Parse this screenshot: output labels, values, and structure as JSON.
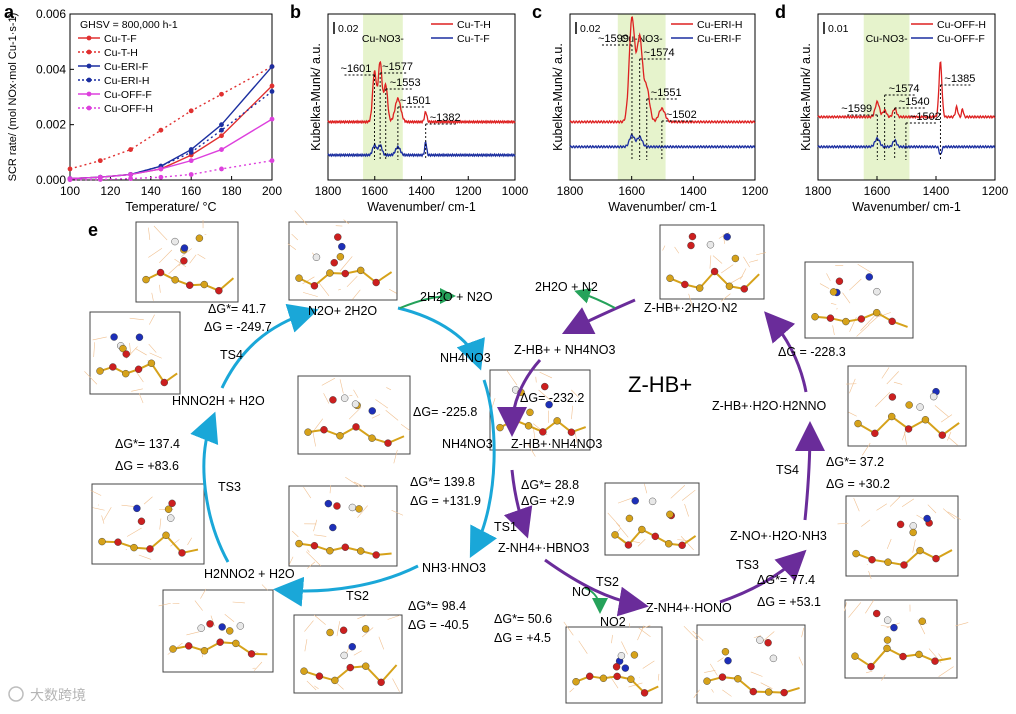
{
  "panel_letters": [
    "a",
    "b",
    "c",
    "d",
    "e"
  ],
  "chart_data": [
    {
      "panel": "a",
      "type": "line",
      "title": "",
      "annotation": "GHSV = 800,000 h-1",
      "xlabel": "Temperature/ °C",
      "ylabel": "SCR rate/ (mol NOx·mol Cu-1·s-1)",
      "xlim": [
        100,
        200
      ],
      "ylim": [
        0,
        0.006
      ],
      "xticks": [
        "100",
        "120",
        "140",
        "160",
        "180",
        "200"
      ],
      "yticks": [
        "0.000",
        "0.002",
        "0.004",
        "0.006"
      ],
      "series": [
        {
          "name": "Cu-T-F",
          "color": "#e03030",
          "style": "solid",
          "x": [
            100,
            115,
            130,
            145,
            160,
            175,
            200
          ],
          "values": [
            5e-05,
            0.0001,
            0.0002,
            0.0004,
            0.0009,
            0.0016,
            0.0034
          ]
        },
        {
          "name": "Cu-T-H",
          "color": "#e03030",
          "style": "dot",
          "x": [
            100,
            115,
            130,
            145,
            160,
            175,
            200
          ],
          "values": [
            0.0004,
            0.0007,
            0.0011,
            0.0018,
            0.0025,
            0.0031,
            0.0041
          ]
        },
        {
          "name": "Cu-ERI-F",
          "color": "#1c2fa0",
          "style": "solid",
          "x": [
            100,
            115,
            130,
            145,
            160,
            175,
            200
          ],
          "values": [
            5e-05,
            0.0001,
            0.0002,
            0.0005,
            0.0011,
            0.002,
            0.0041
          ]
        },
        {
          "name": "Cu-ERI-H",
          "color": "#1c2fa0",
          "style": "dot",
          "x": [
            100,
            115,
            130,
            145,
            160,
            175,
            200
          ],
          "values": [
            5e-05,
            0.0001,
            0.0002,
            0.0005,
            0.001,
            0.0018,
            0.0032
          ]
        },
        {
          "name": "Cu-OFF-F",
          "color": "#dd40dd",
          "style": "solid",
          "x": [
            100,
            115,
            130,
            145,
            160,
            175,
            200
          ],
          "values": [
            5e-05,
            0.0001,
            0.0002,
            0.0004,
            0.0007,
            0.0011,
            0.0022
          ]
        },
        {
          "name": "Cu-OFF-H",
          "color": "#dd40dd",
          "style": "dot",
          "x": [
            100,
            115,
            130,
            145,
            160,
            175,
            200
          ],
          "values": [
            1e-05,
            2e-05,
            5e-05,
            0.0001,
            0.0002,
            0.0004,
            0.0007
          ]
        }
      ]
    },
    {
      "panel": "b",
      "type": "line",
      "xlabel": "Wavenumber/ cm-1",
      "ylabel": "Kubelka-Munk/ a.u.",
      "xlim": [
        1800,
        1000
      ],
      "ylim": [
        0,
        1
      ],
      "xticks": [
        "1800",
        "1600",
        "1400",
        "1200",
        "1000"
      ],
      "scale_label": "0.02",
      "band_label": "Cu-NO3-",
      "band": [
        1650,
        1480
      ],
      "peaks": [
        {
          "label": "~1601",
          "x": 1601
        },
        {
          "label": "~1577",
          "x": 1577
        },
        {
          "label": "~1553",
          "x": 1553
        },
        {
          "label": "~1501",
          "x": 1501
        },
        {
          "label": "~1382",
          "x": 1382
        }
      ],
      "series": [
        {
          "name": "Cu-T-H",
          "color": "#dd2020",
          "baseline": 0.35,
          "peaks": [
            [
              1601,
              0.3,
              8
            ],
            [
              1577,
              0.36,
              8
            ],
            [
              1553,
              0.22,
              8
            ],
            [
              1501,
              0.14,
              12
            ],
            [
              1382,
              0.06,
              5
            ]
          ]
        },
        {
          "name": "Cu-T-F",
          "color": "#1c2fa0",
          "baseline": 0.15,
          "peaks": [
            [
              1601,
              0.06,
              8
            ],
            [
              1577,
              0.06,
              8
            ],
            [
              1501,
              0.05,
              10
            ],
            [
              1382,
              0.08,
              4
            ]
          ]
        }
      ]
    },
    {
      "panel": "c",
      "type": "line",
      "xlabel": "Wavenumber/ cm-1",
      "ylabel": "Kubelka-Munk/ a.u.",
      "xlim": [
        1800,
        1200
      ],
      "ylim": [
        0,
        1
      ],
      "xticks": [
        "1800",
        "1600",
        "1400",
        "1200"
      ],
      "scale_label": "0.02",
      "band_label": "Cu-NO3-",
      "band": [
        1645,
        1490
      ],
      "peaks": [
        {
          "label": "~1599",
          "x": 1599
        },
        {
          "label": "~1574",
          "x": 1574
        },
        {
          "label": "~1551",
          "x": 1551
        },
        {
          "label": "~1502",
          "x": 1502
        }
      ],
      "series": [
        {
          "name": "Cu-ERI-H",
          "color": "#dd2020",
          "baseline": 0.35,
          "peaks": [
            [
              1599,
              0.62,
              9
            ],
            [
              1574,
              0.5,
              9
            ],
            [
              1551,
              0.2,
              9
            ],
            [
              1502,
              0.08,
              10
            ]
          ]
        },
        {
          "name": "Cu-ERI-F",
          "color": "#1c2fa0",
          "baseline": 0.2,
          "peaks": [
            [
              1599,
              0.07,
              8
            ],
            [
              1574,
              0.06,
              8
            ]
          ]
        }
      ]
    },
    {
      "panel": "d",
      "type": "line",
      "xlabel": "Wavenumber/ cm-1",
      "ylabel": "Kubelka-Munk/ a.u.",
      "xlim": [
        1800,
        1200
      ],
      "ylim": [
        0,
        1
      ],
      "xticks": [
        "1800",
        "1600",
        "1400",
        "1200"
      ],
      "scale_label": "0.01",
      "band_label": "Cu-NO3-",
      "band": [
        1645,
        1490
      ],
      "peaks": [
        {
          "label": "~1574",
          "x": 1574
        },
        {
          "label": "~1599",
          "x": 1599
        },
        {
          "label": "~1540",
          "x": 1540
        },
        {
          "label": "~1502",
          "x": 1502
        },
        {
          "label": "~1385",
          "x": 1385
        }
      ],
      "series": [
        {
          "name": "Cu-OFF-H",
          "color": "#dd2020",
          "baseline": 0.38,
          "peaks": [
            [
              1599,
              0.09,
              7
            ],
            [
              1574,
              0.04,
              6
            ],
            [
              1540,
              0.05,
              6
            ],
            [
              1385,
              0.33,
              5
            ],
            [
              1330,
              0.06,
              4
            ],
            [
              1310,
              0.05,
              3
            ]
          ]
        },
        {
          "name": "Cu-OFF-F",
          "color": "#1c2fa0",
          "baseline": 0.2,
          "peaks": [
            [
              1599,
              0.05,
              8
            ],
            [
              1540,
              0.04,
              6
            ],
            [
              1385,
              -0.05,
              4
            ]
          ]
        }
      ]
    }
  ],
  "cycle": {
    "center_label": "Z-HB+",
    "left": {
      "species": {
        "n2o_h2o": "N2O+ 2H2O",
        "nh4no3": "NH4NO3",
        "nh4no3_2": "NH4NO3",
        "nh3_hno3": "NH3·HNO3",
        "h2nno2": "H2NNO2 + H2O",
        "hnno2h": "HNNO2H + H2O"
      },
      "products": {
        "top": "2H2O + N2O"
      },
      "ts": [
        "TS1",
        "TS2",
        "TS3",
        "TS4"
      ],
      "energies": {
        "e1": "ΔG= -225.8",
        "e2a": "ΔG*= 139.8",
        "e2b": "ΔG = +131.9",
        "e3a": "ΔG*= 98.4",
        "e3b": "ΔG = -40.5",
        "e4a": "ΔG*= 137.4",
        "e4b": "ΔG = +83.6",
        "e5a": "ΔG*= 41.7",
        "e5b": "ΔG = -249.7"
      }
    },
    "right": {
      "species": {
        "zhb_n2": "Z-HB+·2H2O·N2",
        "zhb_nh4no3": "Z-HB+ + NH4NO3",
        "zhb_nh4no3_2": "Z-HB+·NH4NO3",
        "znh4_hbno3": "Z-NH4+·HBNO3",
        "znh4_hono": "Z-NH4+·HONO",
        "zno_nh3": "Z-NO+·H2O·NH3",
        "zhb_h2nno": "Z-HB+·H2O·H2NNO"
      },
      "products": {
        "top": "2H2O + N2",
        "no": "NO",
        "no2": "NO2"
      },
      "ts": [
        "TS2",
        "TS3",
        "TS4"
      ],
      "energies": {
        "r1": "ΔG= -232.2",
        "r2a": "ΔG*= 28.8",
        "r2b": "ΔG= +2.9",
        "r3a": "ΔG*= 50.6",
        "r3b": "ΔG = +4.5",
        "r4a": "ΔG*= 77.4",
        "r4b": "ΔG = +53.1",
        "r5a": "ΔG*= 37.2",
        "r5b": "ΔG = +30.2",
        "r6": "ΔG = -228.3"
      }
    }
  },
  "watermark": "大数跨境",
  "colors": {
    "red": "#dd2020",
    "blue": "#1c2fa0",
    "magenta": "#dd40dd",
    "cyan_arrow": "#1aa7d8",
    "purple_arrow": "#6a2c9a",
    "green_arrow": "#25a25a",
    "band": "#e6f3cc",
    "band_label": "#d02020"
  }
}
